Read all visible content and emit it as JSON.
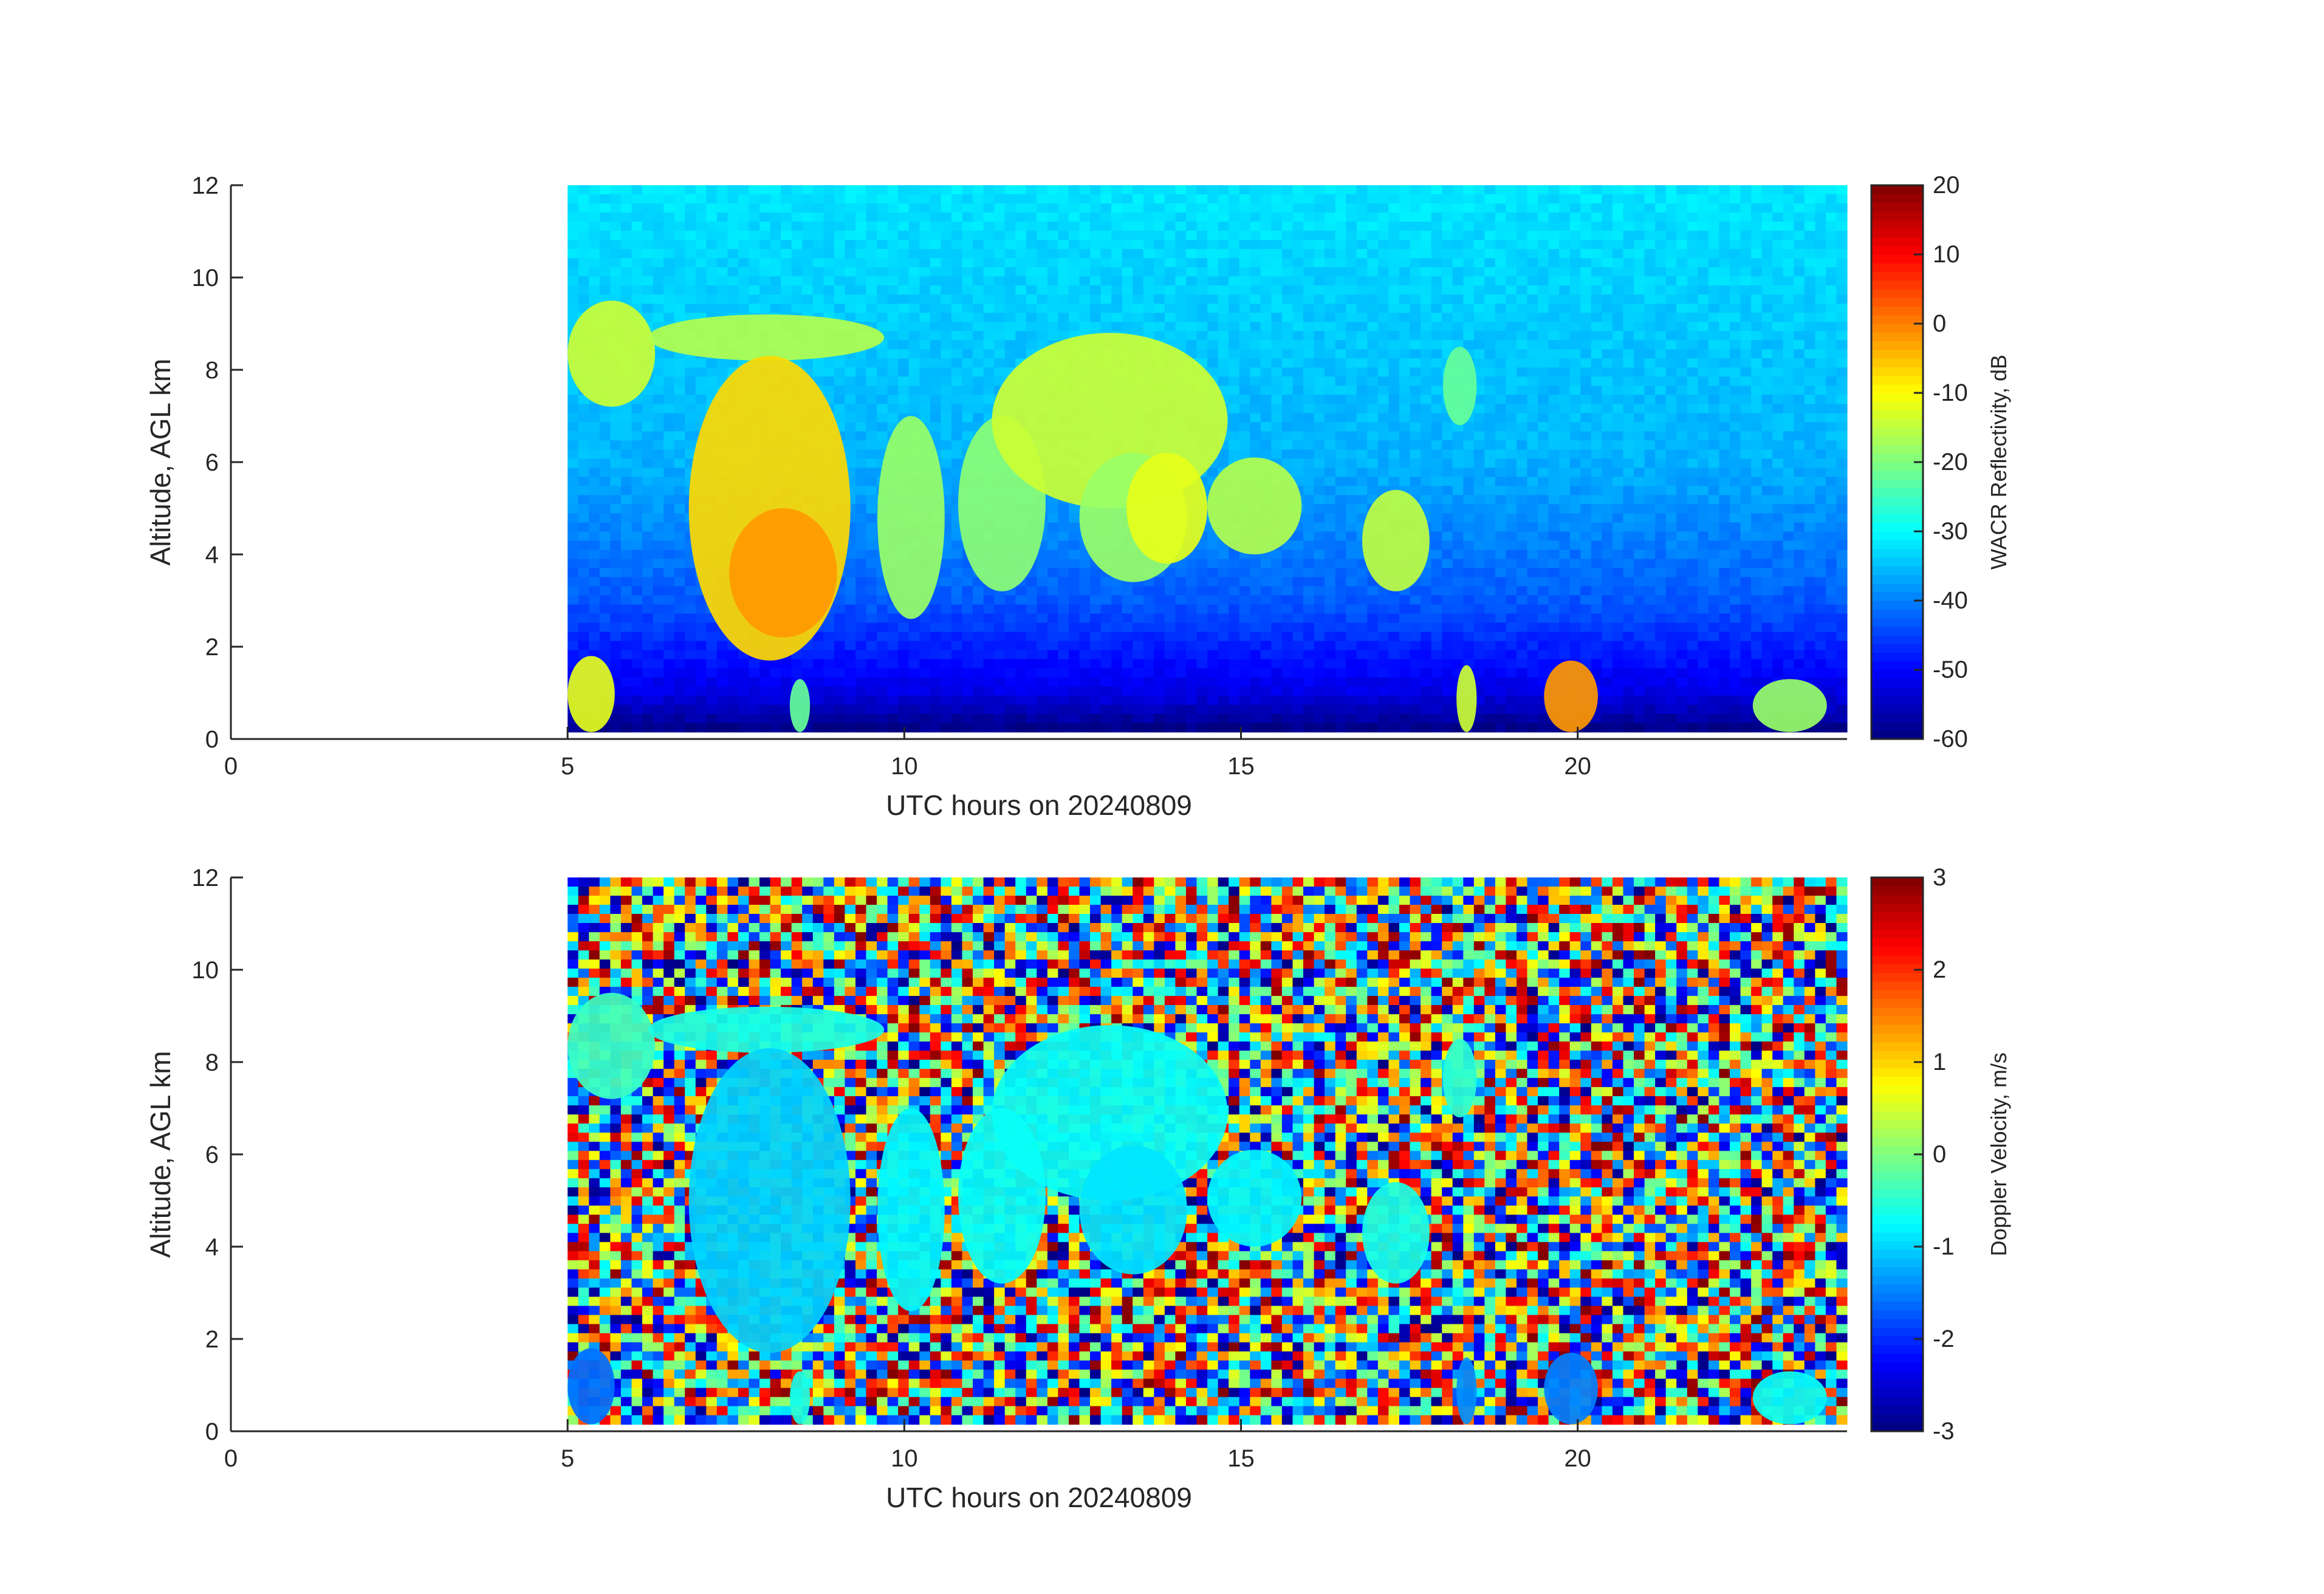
{
  "chart_data": [
    {
      "type": "heatmap",
      "title": "",
      "xlabel": "UTC hours on 20240809",
      "ylabel": "Altitude, AGL km",
      "xlim": [
        0,
        24
      ],
      "ylim": [
        0,
        12
      ],
      "xticks": [
        "0",
        "5",
        "10",
        "15",
        "20"
      ],
      "yticks": [
        "0",
        "2",
        "4",
        "6",
        "8",
        "10",
        "12"
      ],
      "data_extent_x": [
        5,
        24
      ],
      "data_extent_y": [
        0.15,
        12
      ],
      "colorbar": {
        "label": "WACR Reflectivity, dB",
        "range": [
          -60,
          20
        ],
        "ticks": [
          "-60",
          "-50",
          "-40",
          "-30",
          "-20",
          "-10",
          "0",
          "10",
          "20"
        ],
        "colormap": "jet"
      },
      "background_value": -33,
      "background_gradient": [
        {
          "alt": 12,
          "value": -32
        },
        {
          "alt": 6,
          "value": -36
        },
        {
          "alt": 3,
          "value": -43
        },
        {
          "alt": 1,
          "value": -52
        },
        {
          "alt": 0.15,
          "value": -60
        }
      ],
      "echo_features": [
        {
          "x0": 5.0,
          "x1": 6.3,
          "y0": 7.2,
          "y1": 9.5,
          "value": -14
        },
        {
          "x0": 6.2,
          "x1": 9.7,
          "y0": 8.2,
          "y1": 9.2,
          "value": -16
        },
        {
          "x0": 6.8,
          "x1": 9.2,
          "y0": 1.7,
          "y1": 8.3,
          "value": -7
        },
        {
          "x0": 7.4,
          "x1": 9.0,
          "y0": 2.2,
          "y1": 5.0,
          "value": -2
        },
        {
          "x0": 9.6,
          "x1": 10.6,
          "y0": 2.6,
          "y1": 7.0,
          "value": -18
        },
        {
          "x0": 10.8,
          "x1": 12.1,
          "y0": 3.2,
          "y1": 7.0,
          "value": -19
        },
        {
          "x0": 11.3,
          "x1": 14.8,
          "y0": 5.0,
          "y1": 8.8,
          "value": -14
        },
        {
          "x0": 12.6,
          "x1": 14.2,
          "y0": 3.4,
          "y1": 6.2,
          "value": -18
        },
        {
          "x0": 13.3,
          "x1": 14.5,
          "y0": 3.8,
          "y1": 6.2,
          "value": -12
        },
        {
          "x0": 14.5,
          "x1": 15.9,
          "y0": 4.0,
          "y1": 6.1,
          "value": -16
        },
        {
          "x0": 16.8,
          "x1": 17.8,
          "y0": 3.2,
          "y1": 5.4,
          "value": -15
        },
        {
          "x0": 18.0,
          "x1": 18.5,
          "y0": 6.8,
          "y1": 8.5,
          "value": -22
        },
        {
          "x0": 5.0,
          "x1": 5.7,
          "y0": 0.15,
          "y1": 1.8,
          "value": -12
        },
        {
          "x0": 8.3,
          "x1": 8.6,
          "y0": 0.15,
          "y1": 1.3,
          "value": -22
        },
        {
          "x0": 18.2,
          "x1": 18.5,
          "y0": 0.15,
          "y1": 1.6,
          "value": -14
        },
        {
          "x0": 19.5,
          "x1": 20.3,
          "y0": 0.15,
          "y1": 1.7,
          "value": -2
        },
        {
          "x0": 22.6,
          "x1": 23.7,
          "y0": 0.15,
          "y1": 1.3,
          "value": -18
        }
      ]
    },
    {
      "type": "heatmap",
      "title": "",
      "xlabel": "UTC hours on 20240809",
      "ylabel": "Altitude, AGL km",
      "xlim": [
        0,
        24
      ],
      "ylim": [
        0,
        12
      ],
      "xticks": [
        "0",
        "5",
        "10",
        "15",
        "20"
      ],
      "yticks": [
        "0",
        "2",
        "4",
        "6",
        "8",
        "10",
        "12"
      ],
      "data_extent_x": [
        5,
        24
      ],
      "data_extent_y": [
        0.15,
        12
      ],
      "colorbar": {
        "label": "Doppler Velocity, m/s",
        "range": [
          -3,
          3
        ],
        "ticks": [
          "-3",
          "-2",
          "-1",
          "0",
          "1",
          "2",
          "3"
        ],
        "colormap": "jet"
      },
      "background": "random noise, full velocity range",
      "echo_features": [
        {
          "x0": 5.0,
          "x1": 6.3,
          "y0": 7.2,
          "y1": 9.5,
          "value": -0.4
        },
        {
          "x0": 6.2,
          "x1": 9.7,
          "y0": 8.2,
          "y1": 9.2,
          "value": -0.6
        },
        {
          "x0": 6.8,
          "x1": 9.2,
          "y0": 1.7,
          "y1": 8.3,
          "value": -1.0
        },
        {
          "x0": 9.6,
          "x1": 10.6,
          "y0": 2.6,
          "y1": 7.0,
          "value": -0.8
        },
        {
          "x0": 10.8,
          "x1": 12.1,
          "y0": 3.2,
          "y1": 7.0,
          "value": -0.7
        },
        {
          "x0": 11.3,
          "x1": 14.8,
          "y0": 5.0,
          "y1": 8.8,
          "value": -0.7
        },
        {
          "x0": 12.6,
          "x1": 14.2,
          "y0": 3.4,
          "y1": 6.2,
          "value": -0.9
        },
        {
          "x0": 14.5,
          "x1": 15.9,
          "y0": 4.0,
          "y1": 6.1,
          "value": -0.8
        },
        {
          "x0": 16.8,
          "x1": 17.8,
          "y0": 3.2,
          "y1": 5.4,
          "value": -0.6
        },
        {
          "x0": 18.0,
          "x1": 18.5,
          "y0": 6.8,
          "y1": 8.5,
          "value": -0.5
        },
        {
          "x0": 5.0,
          "x1": 5.7,
          "y0": 0.15,
          "y1": 1.8,
          "value": -1.6
        },
        {
          "x0": 8.3,
          "x1": 8.6,
          "y0": 0.15,
          "y1": 1.3,
          "value": -0.6
        },
        {
          "x0": 18.2,
          "x1": 18.5,
          "y0": 0.15,
          "y1": 1.6,
          "value": -1.4
        },
        {
          "x0": 19.5,
          "x1": 20.3,
          "y0": 0.15,
          "y1": 1.7,
          "value": -1.5
        },
        {
          "x0": 22.6,
          "x1": 23.7,
          "y0": 0.15,
          "y1": 1.3,
          "value": -0.7
        }
      ]
    }
  ]
}
